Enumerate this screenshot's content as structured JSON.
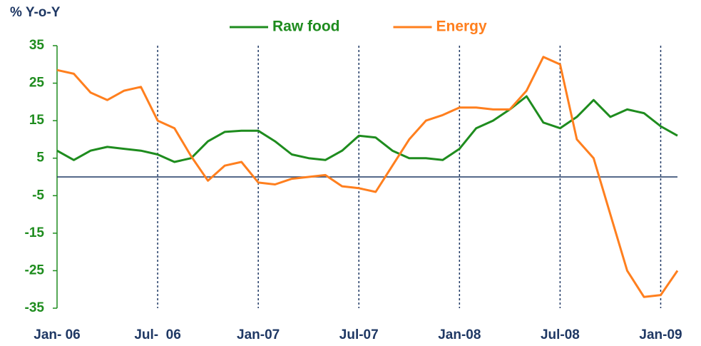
{
  "chart_data": {
    "type": "line",
    "y_label": "% Y-o-Y",
    "categories": [
      "Jan- 06",
      null,
      null,
      null,
      null,
      null,
      "Jul-  06",
      null,
      null,
      null,
      null,
      null,
      "Jan-07",
      null,
      null,
      null,
      null,
      null,
      "Jul-07",
      null,
      null,
      null,
      null,
      null,
      "Jan-08",
      null,
      null,
      null,
      null,
      null,
      "Jul-08",
      null,
      null,
      null,
      null,
      null,
      "Jan-09",
      null
    ],
    "series": [
      {
        "name": "Raw food",
        "color": "#1e8c1e",
        "values": [
          7,
          4.5,
          7,
          8,
          7.5,
          7,
          6,
          4,
          5,
          9.5,
          12,
          12.3,
          12.3,
          9.5,
          6,
          5,
          4.5,
          7,
          11,
          10.5,
          7,
          5,
          5,
          4.5,
          7.5,
          13,
          15,
          18,
          21.5,
          14.5,
          13,
          16,
          20.5,
          16,
          18,
          17,
          13.5,
          11
        ]
      },
      {
        "name": "Energy",
        "color": "#ff7f1e",
        "values": [
          28.5,
          27.5,
          22.5,
          20.5,
          23,
          24,
          15,
          13,
          5.5,
          -1,
          3,
          4,
          -1.5,
          -2,
          -0.5,
          0,
          0.5,
          -2.5,
          -3,
          -4,
          3,
          10,
          15,
          16.5,
          18.5,
          18.5,
          18,
          18,
          23,
          32,
          30,
          10,
          5,
          -10,
          -25,
          -32,
          -31.5,
          -25
        ]
      }
    ],
    "ylim": [
      -35,
      35
    ],
    "yticks": [
      35,
      25,
      15,
      5,
      -5,
      -15,
      -25,
      -35
    ],
    "xgrid": true,
    "legend": "top"
  }
}
